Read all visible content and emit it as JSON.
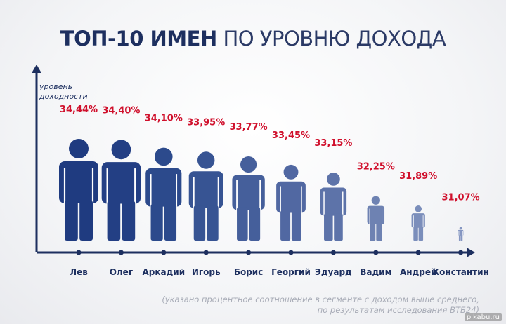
{
  "title": {
    "bold": "ТОП-10 ИМЕН",
    "light": "ПО УРОВНЮ ДОХОДА"
  },
  "chart_data": {
    "type": "bar",
    "ylabel": "уровень доходности",
    "ylabel_lines": [
      "уровень",
      "доходности"
    ],
    "categories": [
      "Лев",
      "Олег",
      "Аркадий",
      "Игорь",
      "Борис",
      "Георгий",
      "Эдуард",
      "Вадим",
      "Андрей",
      "Константин"
    ],
    "values": [
      34.44,
      34.4,
      34.1,
      33.95,
      33.77,
      33.45,
      33.15,
      32.25,
      31.89,
      31.07
    ],
    "value_labels": [
      "34,44%",
      "34,40%",
      "34,10%",
      "33,95%",
      "33,77%",
      "33,45%",
      "33,15%",
      "32,25%",
      "31,89%",
      "31,07%"
    ],
    "figure_colors": [
      "#1f3b80",
      "#233f84",
      "#2c4a8c",
      "#375493",
      "#455f9b",
      "#5168a2",
      "#5d73a9",
      "#6e82b2",
      "#7b8ebb",
      "#8596c1"
    ],
    "label_color": "#d0102c",
    "axis_color": "#1d2f5f"
  },
  "footnote": {
    "line1": "(указано процентное соотношение в сегменте с доходом выше среднего,",
    "line2": "по результатам исследования ВТБ24)"
  },
  "watermark": "pikabu.ru"
}
